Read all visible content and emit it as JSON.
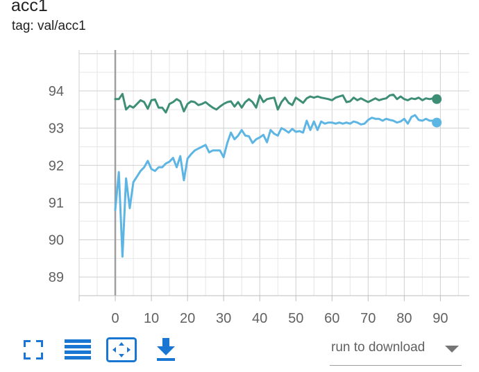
{
  "card": {
    "title": "acc1",
    "tag": "tag: val/acc1"
  },
  "toolbar": {
    "fullscreen_icon": "fullscreen-icon",
    "legend_icon": "list-icon",
    "fit_icon": "fit-to-data-icon",
    "download_icon": "download-icon",
    "download_label": "run to download",
    "icon_color": "#1976d2"
  },
  "chart_data": {
    "type": "line",
    "xlim": [
      -10,
      98
    ],
    "ylim": [
      88.5,
      95.1
    ],
    "xticks": [
      0,
      10,
      20,
      30,
      40,
      50,
      60,
      70,
      80,
      90
    ],
    "yticks": [
      89,
      90,
      91,
      92,
      93,
      94
    ],
    "grid": true,
    "series": [
      {
        "color": "#3e8e76",
        "x": [
          0,
          1,
          2,
          3,
          4,
          5,
          6,
          7,
          8,
          9,
          10,
          11,
          12,
          13,
          14,
          15,
          16,
          17,
          18,
          19,
          20,
          21,
          22,
          23,
          24,
          25,
          26,
          27,
          28,
          29,
          30,
          31,
          32,
          33,
          34,
          35,
          36,
          37,
          38,
          39,
          40,
          41,
          42,
          43,
          44,
          45,
          46,
          47,
          48,
          49,
          50,
          51,
          52,
          53,
          54,
          55,
          56,
          57,
          58,
          59,
          60,
          61,
          62,
          63,
          64,
          65,
          66,
          67,
          68,
          69,
          70,
          71,
          72,
          73,
          74,
          75,
          76,
          77,
          78,
          79,
          80,
          81,
          82,
          83,
          84,
          85,
          86,
          87,
          88,
          89
        ],
        "y": [
          93.78,
          93.78,
          93.92,
          93.5,
          93.6,
          93.55,
          93.65,
          93.75,
          93.7,
          93.52,
          93.75,
          93.77,
          93.55,
          93.55,
          93.42,
          93.65,
          93.7,
          93.78,
          93.72,
          93.45,
          93.65,
          93.72,
          93.7,
          93.62,
          93.65,
          93.7,
          93.62,
          93.55,
          93.5,
          93.58,
          93.65,
          93.7,
          93.72,
          93.58,
          93.7,
          93.55,
          93.7,
          93.78,
          93.7,
          93.55,
          93.88,
          93.7,
          93.78,
          93.8,
          93.82,
          93.5,
          93.7,
          93.82,
          93.68,
          93.62,
          93.82,
          93.75,
          93.68,
          93.8,
          93.85,
          93.82,
          93.85,
          93.82,
          93.8,
          93.78,
          93.75,
          93.82,
          93.85,
          93.88,
          93.7,
          93.72,
          93.82,
          93.75,
          93.8,
          93.75,
          93.7,
          93.75,
          93.8,
          93.75,
          93.78,
          93.8,
          93.88,
          93.9,
          93.78,
          93.85,
          93.78,
          93.75,
          93.8,
          93.78,
          93.82,
          93.75,
          93.8,
          93.78,
          93.8,
          93.78
        ]
      },
      {
        "color": "#5db5e3",
        "x": [
          0,
          1,
          2,
          3,
          4,
          5,
          6,
          7,
          8,
          9,
          10,
          11,
          12,
          13,
          14,
          15,
          16,
          17,
          18,
          19,
          20,
          21,
          22,
          23,
          24,
          25,
          26,
          27,
          28,
          29,
          30,
          31,
          32,
          33,
          34,
          35,
          36,
          37,
          38,
          39,
          40,
          41,
          42,
          43,
          44,
          45,
          46,
          47,
          48,
          49,
          50,
          51,
          52,
          53,
          54,
          55,
          56,
          57,
          58,
          59,
          60,
          61,
          62,
          63,
          64,
          65,
          66,
          67,
          68,
          69,
          70,
          71,
          72,
          73,
          74,
          75,
          76,
          77,
          78,
          79,
          80,
          81,
          82,
          83,
          84,
          85,
          86,
          87,
          88,
          89
        ],
        "y": [
          90.8,
          91.82,
          89.55,
          91.65,
          90.85,
          91.55,
          91.7,
          91.85,
          91.95,
          92.12,
          91.9,
          91.85,
          91.95,
          91.95,
          92.05,
          92.1,
          92.2,
          91.95,
          92.25,
          91.6,
          92.18,
          92.3,
          92.4,
          92.45,
          92.5,
          92.55,
          92.35,
          92.4,
          92.4,
          92.4,
          92.22,
          92.6,
          92.88,
          92.7,
          92.8,
          92.95,
          92.8,
          92.78,
          92.6,
          92.7,
          92.75,
          92.82,
          92.62,
          92.95,
          92.85,
          92.8,
          93.0,
          92.95,
          92.88,
          92.98,
          92.9,
          92.92,
          92.88,
          93.2,
          92.95,
          93.18,
          92.95,
          93.18,
          93.12,
          93.15,
          93.15,
          93.12,
          93.15,
          93.12,
          93.15,
          93.12,
          93.18,
          93.15,
          93.1,
          93.12,
          93.22,
          93.28,
          93.25,
          93.25,
          93.2,
          93.25,
          93.22,
          93.2,
          93.15,
          93.18,
          93.25,
          93.12,
          93.3,
          93.35,
          93.22,
          93.2,
          93.25,
          93.2,
          93.2,
          93.15
        ]
      }
    ]
  }
}
